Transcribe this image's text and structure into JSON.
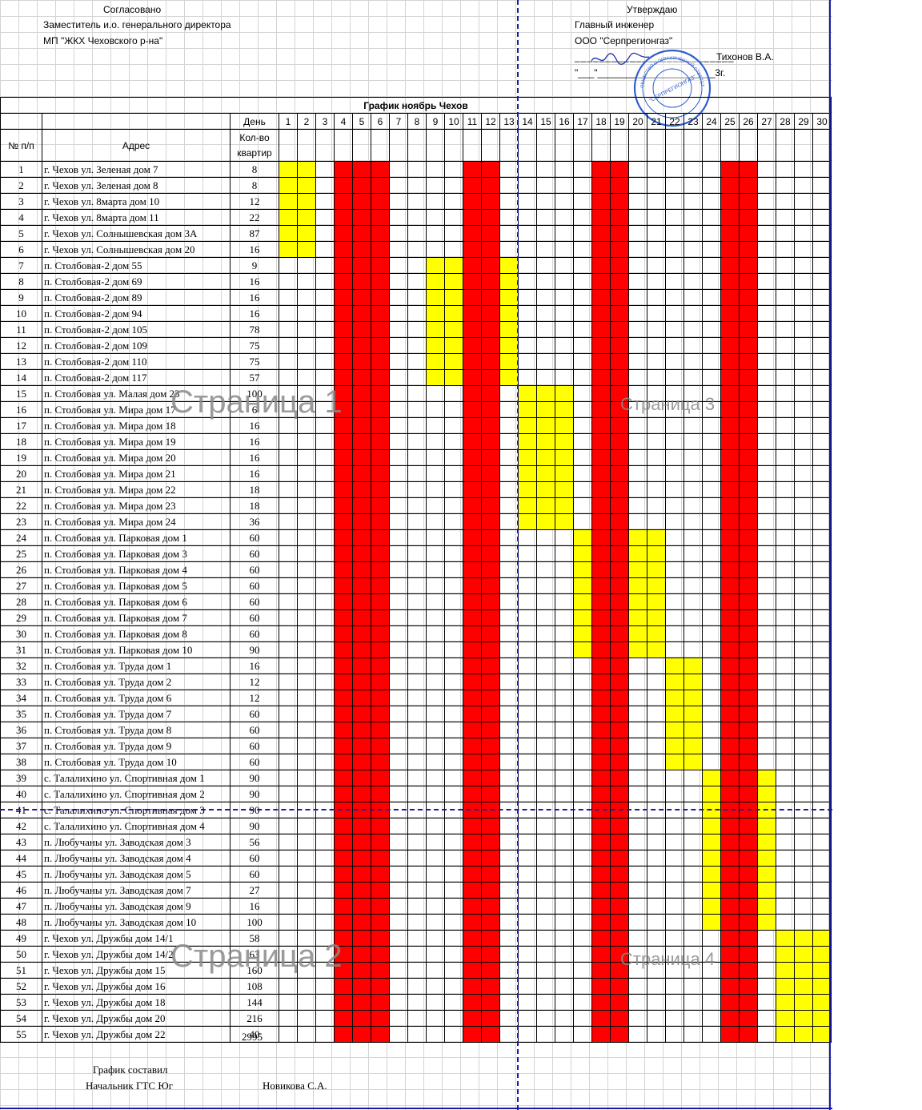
{
  "header": {
    "left": {
      "title": "Согласовано",
      "line1": "Заместитель и.о. генерального директора",
      "line2": "МП \"ЖКХ Чеховского р-на\""
    },
    "right": {
      "title": "Утверждаю",
      "line1": "Главный инженер",
      "line2": "ООО \"Серпрегионгаз\"",
      "signer": "Тихонов В.А.",
      "date_line": "\"___\"______________________3г.",
      "stamp_center": "\"СЕРПРЕГИОНГАЗ\""
    }
  },
  "schedule": {
    "title": "График ноябрь Чехов",
    "col_num": "№ п/п",
    "col_address": "Адрес",
    "col_day": "День",
    "col_qty_line1": "Кол-во",
    "col_qty_line2": "квартир",
    "days": [
      "1",
      "2",
      "3",
      "4",
      "5",
      "6",
      "7",
      "8",
      "9",
      "10",
      "11",
      "12",
      "13",
      "14",
      "15",
      "16",
      "17",
      "18",
      "19",
      "20",
      "21",
      "22",
      "23",
      "24",
      "25",
      "26",
      "27",
      "28",
      "29",
      "30"
    ],
    "red_days": [
      4,
      5,
      6,
      11,
      12,
      18,
      19,
      25,
      26
    ],
    "rows": [
      {
        "n": "1",
        "addr": "г. Чехов ул. Зеленая дом 7",
        "qty": "8",
        "y": [
          1,
          2
        ]
      },
      {
        "n": "2",
        "addr": "г. Чехов ул. Зеленая дом 8",
        "qty": "8",
        "y": [
          1,
          2
        ]
      },
      {
        "n": "3",
        "addr": "г. Чехов ул. 8марта дом 10",
        "qty": "12",
        "y": [
          1,
          2
        ]
      },
      {
        "n": "4",
        "addr": "г. Чехов ул. 8марта дом 11",
        "qty": "22",
        "y": [
          1,
          2
        ]
      },
      {
        "n": "5",
        "addr": "г. Чехов ул. Солнышевская дом 3А",
        "qty": "87",
        "y": [
          1,
          2
        ]
      },
      {
        "n": "6",
        "addr": "г. Чехов ул. Солнышевская дом 20",
        "qty": "16",
        "y": [
          1,
          2
        ]
      },
      {
        "n": "7",
        "addr": "п. Столбовая-2 дом 55",
        "qty": "9",
        "y": [
          9,
          10,
          13
        ]
      },
      {
        "n": "8",
        "addr": "п. Столбовая-2 дом 69",
        "qty": "16",
        "y": [
          9,
          10,
          13
        ]
      },
      {
        "n": "9",
        "addr": "п. Столбовая-2 дом 89",
        "qty": "16",
        "y": [
          9,
          10,
          13
        ]
      },
      {
        "n": "10",
        "addr": "п. Столбовая-2 дом 94",
        "qty": "16",
        "y": [
          9,
          10,
          13
        ]
      },
      {
        "n": "11",
        "addr": "п. Столбовая-2 дом 105",
        "qty": "78",
        "y": [
          9,
          10,
          13
        ]
      },
      {
        "n": "12",
        "addr": "п. Столбовая-2 дом 109",
        "qty": "75",
        "y": [
          9,
          10,
          13
        ]
      },
      {
        "n": "13",
        "addr": "п. Столбовая-2 дом 110",
        "qty": "75",
        "y": [
          9,
          10,
          13
        ]
      },
      {
        "n": "14",
        "addr": "п. Столбовая-2 дом 117",
        "qty": "57",
        "y": [
          9,
          10,
          13
        ]
      },
      {
        "n": "15",
        "addr": "п. Столбовая ул. Малая дом 23",
        "qty": "100",
        "y": [
          14,
          15,
          16
        ]
      },
      {
        "n": "16",
        "addr": "п. Столбовая ул. Мира дом 17",
        "qty": "6",
        "y": [
          14,
          15,
          16
        ]
      },
      {
        "n": "17",
        "addr": "п. Столбовая ул. Мира дом 18",
        "qty": "16",
        "y": [
          14,
          15,
          16
        ]
      },
      {
        "n": "18",
        "addr": "п. Столбовая ул. Мира дом 19",
        "qty": "16",
        "y": [
          14,
          15,
          16
        ]
      },
      {
        "n": "19",
        "addr": "п. Столбовая ул. Мира дом 20",
        "qty": "16",
        "y": [
          14,
          15,
          16
        ]
      },
      {
        "n": "20",
        "addr": "п. Столбовая ул. Мира дом 21",
        "qty": "16",
        "y": [
          14,
          15,
          16
        ]
      },
      {
        "n": "21",
        "addr": "п. Столбовая ул. Мира дом 22",
        "qty": "18",
        "y": [
          14,
          15,
          16
        ]
      },
      {
        "n": "22",
        "addr": "п. Столбовая ул. Мира дом 23",
        "qty": "18",
        "y": [
          14,
          15,
          16
        ]
      },
      {
        "n": "23",
        "addr": "п. Столбовая ул. Мира дом 24",
        "qty": "36",
        "y": [
          14,
          15,
          16
        ]
      },
      {
        "n": "24",
        "addr": "п. Столбовая ул. Парковая дом 1",
        "qty": "60",
        "y": [
          17,
          20,
          21
        ]
      },
      {
        "n": "25",
        "addr": "п. Столбовая ул. Парковая дом 3",
        "qty": "60",
        "y": [
          17,
          20,
          21
        ]
      },
      {
        "n": "26",
        "addr": "п. Столбовая ул. Парковая дом 4",
        "qty": "60",
        "y": [
          17,
          20,
          21
        ]
      },
      {
        "n": "27",
        "addr": "п. Столбовая ул. Парковая дом 5",
        "qty": "60",
        "y": [
          17,
          20,
          21
        ]
      },
      {
        "n": "28",
        "addr": "п. Столбовая ул. Парковая дом 6",
        "qty": "60",
        "y": [
          17,
          20,
          21
        ]
      },
      {
        "n": "29",
        "addr": "п. Столбовая ул. Парковая дом 7",
        "qty": "60",
        "y": [
          17,
          20,
          21
        ]
      },
      {
        "n": "30",
        "addr": "п. Столбовая ул. Парковая дом 8",
        "qty": "60",
        "y": [
          17,
          20,
          21
        ]
      },
      {
        "n": "31",
        "addr": "п. Столбовая ул. Парковая дом 10",
        "qty": "90",
        "y": [
          17,
          20,
          21
        ]
      },
      {
        "n": "32",
        "addr": "п. Столбовая ул. Труда дом 1",
        "qty": "16",
        "y": [
          22,
          23
        ]
      },
      {
        "n": "33",
        "addr": "п. Столбовая ул. Труда дом 2",
        "qty": "12",
        "y": [
          22,
          23
        ]
      },
      {
        "n": "34",
        "addr": "п. Столбовая ул. Труда дом 6",
        "qty": "12",
        "y": [
          22,
          23
        ]
      },
      {
        "n": "35",
        "addr": "п. Столбовая ул. Труда дом 7",
        "qty": "60",
        "y": [
          22,
          23
        ]
      },
      {
        "n": "36",
        "addr": "п. Столбовая ул. Труда дом 8",
        "qty": "60",
        "y": [
          22,
          23
        ]
      },
      {
        "n": "37",
        "addr": "п. Столбовая ул. Труда дом 9",
        "qty": "60",
        "y": [
          22,
          23
        ]
      },
      {
        "n": "38",
        "addr": "п. Столбовая ул. Труда дом 10",
        "qty": "60",
        "y": [
          22,
          23
        ]
      },
      {
        "n": "39",
        "addr": "с. Талалихино ул. Спортивная дом 1",
        "qty": "90",
        "y": [
          24,
          27
        ]
      },
      {
        "n": "40",
        "addr": "с. Талалихино ул. Спортивная дом 2",
        "qty": "90",
        "y": [
          24,
          27
        ]
      },
      {
        "n": "41",
        "addr": "с. Талалихино ул. Спортивная дом 3",
        "qty": "90",
        "y": [
          24,
          27
        ]
      },
      {
        "n": "42",
        "addr": "с. Талалихино ул. Спортивная дом 4",
        "qty": "90",
        "y": [
          24,
          27
        ]
      },
      {
        "n": "43",
        "addr": "п. Любучаны ул. Заводская дом 3",
        "qty": "56",
        "y": [
          24,
          27
        ]
      },
      {
        "n": "44",
        "addr": "п. Любучаны ул. Заводская дом 4",
        "qty": "60",
        "y": [
          24,
          27
        ]
      },
      {
        "n": "45",
        "addr": "п. Любучаны ул. Заводская дом 5",
        "qty": "60",
        "y": [
          24,
          27
        ]
      },
      {
        "n": "46",
        "addr": "п. Любучаны ул. Заводская дом 7",
        "qty": "27",
        "y": [
          24,
          27
        ]
      },
      {
        "n": "47",
        "addr": "п. Любучаны ул. Заводская дом 9",
        "qty": "16",
        "y": [
          24,
          27
        ]
      },
      {
        "n": "48",
        "addr": "п. Любучаны ул. Заводская дом 10",
        "qty": "100",
        "y": [
          24,
          27
        ]
      },
      {
        "n": "49",
        "addr": "г. Чехов ул. Дружбы дом 14/1",
        "qty": "58",
        "y": [
          28,
          29,
          30
        ]
      },
      {
        "n": "50",
        "addr": "г. Чехов ул. Дружбы дом 14/2",
        "qty": "63",
        "y": [
          28,
          29,
          30
        ]
      },
      {
        "n": "51",
        "addr": "г. Чехов ул. Дружбы дом 15",
        "qty": "160",
        "y": [
          28,
          29,
          30
        ]
      },
      {
        "n": "52",
        "addr": "г. Чехов ул. Дружбы дом 16",
        "qty": "108",
        "y": [
          28,
          29,
          30
        ]
      },
      {
        "n": "53",
        "addr": "г. Чехов ул. Дружбы дом 18",
        "qty": "144",
        "y": [
          28,
          29,
          30
        ]
      },
      {
        "n": "54",
        "addr": "г. Чехов ул. Дружбы дом 20",
        "qty": "216",
        "y": [
          28,
          29,
          30
        ]
      },
      {
        "n": "55",
        "addr": "г. Чехов ул. Дружбы дом 22",
        "qty": "40",
        "y": [
          28,
          29,
          30
        ]
      }
    ],
    "total": "2995"
  },
  "colors": {
    "work_day": "#ffff00",
    "weekend": "#ff0000",
    "page_break": "#1a1aa8"
  },
  "watermarks": {
    "p1": "Страница 1",
    "p2": "Страница 2",
    "p3": "Страница 3",
    "p4": "Страница 4"
  },
  "footer": {
    "compiled_label": "График составил",
    "position": "Начальник ГТС Юг",
    "name": "Новикова С.А."
  }
}
